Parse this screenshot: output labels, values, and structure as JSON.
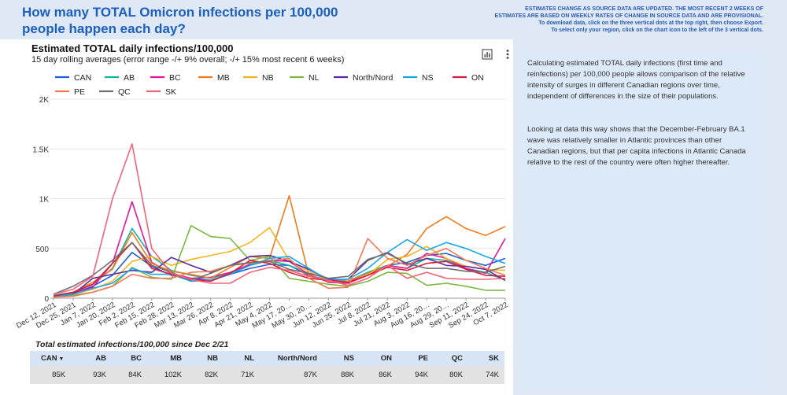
{
  "header": {
    "title": "How many TOTAL Omicron infections per 100,000 people happen each day?",
    "note_lines": [
      "ESTIMATES CHANGE AS SOURCE DATA ARE UPDATED. THE MOST RECENT 2 WEEKS OF",
      "ESTIMATES ARE BASED ON WEEKLY RATES OF CHANGE IN SOURCE DATA AND ARE PROVISIONAL.",
      "To download data, click on the three vertical dots at the top right, then choose Export.",
      "To select only your region, click on the chart icon to the left of the 3 vertical dots."
    ]
  },
  "chart": {
    "title": "Estimated TOTAL daily infections/100,000",
    "subtitle": "15 day rolling averages (error range -/+ 9% overall; -/+ 15% most recent 6 weeks)"
  },
  "description": {
    "p1": "Calculating estimated TOTAL daily infections (first time and reinfections) per 100,000 people allows comparison of the relative intensity of surges in different Canadian regions over time, independent of differences in the size of their populations.",
    "p2": "Looking at data this way shows that the December-February BA.1 wave was relatively smaller in Atlantic provinces than other Canadian regions, but that per capita infections in Atlantic Canada relative to the rest of the country were often higher thereafter."
  },
  "table": {
    "title": "Total estimated infections/100,000 since Dec 2/21",
    "sort_indicator": "▼",
    "headers": [
      "CAN",
      "AB",
      "BC",
      "MB",
      "NB",
      "NL",
      "North/Nord",
      "NS",
      "ON",
      "PE",
      "QC",
      "SK"
    ],
    "values": [
      "85K",
      "93K",
      "84K",
      "102K",
      "82K",
      "71K",
      "87K",
      "88K",
      "86K",
      "94K",
      "80K",
      "74K"
    ]
  },
  "chart_data": {
    "type": "line",
    "title": "Estimated TOTAL daily infections/100,000",
    "ylim": [
      0,
      2000
    ],
    "yticks": [
      0,
      500,
      1000,
      1500,
      2000
    ],
    "ytick_labels": [
      "0",
      "500",
      "1K",
      "1.5K",
      "2K"
    ],
    "x": [
      "Dec 12, 2021",
      "Dec 25, 2021",
      "Jan 7, 2022",
      "Jan 20, 2022",
      "Feb 2, 2022",
      "Feb 15, 2022",
      "Feb 28, 2022",
      "Mar 13, 2022",
      "Mar 26, 2022",
      "Apr 8, 2022",
      "Apr 21, 2022",
      "May 4, 2022",
      "May 17, 2022",
      "May 30, 2022",
      "Jun 12, 2022",
      "Jun 25, 2022",
      "Jul 8, 2022",
      "Jul 21, 2022",
      "Aug 3, 2022",
      "Aug 16, 2022",
      "Aug 29, 2022",
      "Sep 11, 2022",
      "Sep 24, 2022",
      "Oct 7, 2022"
    ],
    "xtick_labels": [
      "Dec 12, 2021",
      "Dec 25, 2021",
      "Jan 7, 2022",
      "Jan 20, 2022",
      "Feb 2, 2022",
      "Feb 15, 2022",
      "Feb 28, 2022",
      "Mar 13, 2022",
      "Mar 26, 2022",
      "Apr 8, 2022",
      "Apr 21, 2022",
      "May 4, 2022",
      "May 17, 20…",
      "May 30, 20…",
      "Jun 12, 2022",
      "Jun 25, 2022",
      "Jul 8, 2022",
      "Jul 21, 2022",
      "Aug 3, 2022",
      "Aug 16, 20…",
      "Aug 29, 20…",
      "Sep 11, 2022",
      "Sep 24, 2022",
      "Oct 7, 2022"
    ],
    "series": [
      {
        "name": "CAN",
        "color": "#1f5fd6",
        "values": [
          20,
          50,
          120,
          230,
          460,
          320,
          230,
          200,
          180,
          240,
          300,
          340,
          330,
          230,
          180,
          170,
          260,
          330,
          360,
          430,
          450,
          380,
          330,
          400
        ]
      },
      {
        "name": "AB",
        "color": "#14b3a6",
        "values": [
          30,
          60,
          140,
          300,
          700,
          420,
          280,
          230,
          200,
          250,
          330,
          380,
          330,
          250,
          200,
          170,
          260,
          330,
          300,
          400,
          380,
          300,
          260,
          180
        ]
      },
      {
        "name": "BC",
        "color": "#e6169a",
        "values": [
          20,
          50,
          110,
          350,
          970,
          360,
          250,
          200,
          210,
          260,
          340,
          380,
          370,
          240,
          160,
          150,
          230,
          330,
          300,
          450,
          400,
          300,
          250,
          600
        ]
      },
      {
        "name": "MB",
        "color": "#f07b1c",
        "values": [
          20,
          60,
          160,
          290,
          660,
          350,
          270,
          240,
          200,
          310,
          420,
          400,
          1030,
          230,
          170,
          170,
          250,
          320,
          440,
          700,
          820,
          700,
          630,
          720
        ]
      },
      {
        "name": "NB",
        "color": "#f5b320",
        "values": [
          15,
          40,
          90,
          170,
          370,
          420,
          330,
          390,
          430,
          470,
          560,
          710,
          380,
          270,
          180,
          160,
          230,
          390,
          420,
          520,
          400,
          320,
          290,
          280
        ]
      },
      {
        "name": "NL",
        "color": "#7cb742",
        "values": [
          10,
          30,
          60,
          120,
          310,
          210,
          190,
          730,
          620,
          600,
          380,
          420,
          200,
          170,
          140,
          120,
          170,
          260,
          250,
          130,
          150,
          120,
          80,
          80
        ]
      },
      {
        "name": "North/Nord",
        "color": "#5a2ca0",
        "values": [
          15,
          40,
          200,
          240,
          280,
          260,
          410,
          330,
          260,
          330,
          420,
          430,
          370,
          290,
          190,
          190,
          380,
          460,
          340,
          400,
          330,
          320,
          290,
          180
        ]
      },
      {
        "name": "NS",
        "color": "#1aa7e8",
        "values": [
          15,
          40,
          100,
          150,
          300,
          240,
          240,
          170,
          180,
          240,
          330,
          400,
          420,
          300,
          180,
          190,
          300,
          460,
          590,
          480,
          560,
          500,
          420,
          350
        ]
      },
      {
        "name": "ON",
        "color": "#d81c3e",
        "values": [
          20,
          60,
          140,
          350,
          560,
          300,
          240,
          190,
          170,
          250,
          380,
          350,
          260,
          200,
          180,
          160,
          230,
          310,
          280,
          350,
          370,
          290,
          230,
          220
        ]
      },
      {
        "name": "PE",
        "color": "#f07a54",
        "values": [
          10,
          20,
          60,
          120,
          240,
          200,
          200,
          260,
          270,
          330,
          350,
          380,
          400,
          200,
          100,
          110,
          600,
          400,
          330,
          430,
          500,
          380,
          300,
          230
        ]
      },
      {
        "name": "QC",
        "color": "#707070",
        "values": [
          40,
          120,
          230,
          380,
          560,
          330,
          260,
          180,
          250,
          330,
          360,
          370,
          290,
          250,
          200,
          220,
          390,
          450,
          350,
          300,
          300,
          270,
          260,
          320
        ]
      },
      {
        "name": "SK",
        "color": "#f0647a",
        "values": [
          40,
          90,
          220,
          1000,
          1550,
          500,
          250,
          190,
          150,
          150,
          260,
          310,
          280,
          220,
          180,
          130,
          200,
          330,
          200,
          260,
          200,
          190,
          190,
          200
        ]
      }
    ]
  }
}
